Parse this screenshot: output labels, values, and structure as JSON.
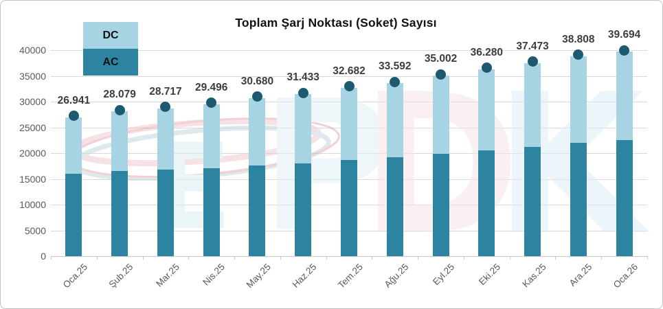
{
  "title": "Toplam Şarj Noktası (Soket) Sayısı",
  "legend": {
    "dc_label": "DC",
    "ac_label": "AC"
  },
  "watermark": {
    "name": "EPDK"
  },
  "colors": {
    "dc": "#A6D4E3",
    "ac": "#2C84A0",
    "marker": "#1D5A70",
    "grid": "#D9D9D9",
    "axis_text": "#595959",
    "data_label_text": "#3D3D3D",
    "title_text": "#111111",
    "frame_border": "#C2C2C2"
  },
  "chart_data": {
    "type": "bar",
    "stacked": true,
    "title": "Toplam Şarj Noktası (Soket) Sayısı",
    "categories": [
      "Oca.25",
      "Şub.25",
      "Mar.25",
      "Nis.25",
      "May.25",
      "Haz.25",
      "Tem.25",
      "Ağu.25",
      "Eyl.25",
      "Eki.25",
      "Kas.25",
      "Ara.25",
      "Oca.26"
    ],
    "series": [
      {
        "name": "AC",
        "color": "#2C84A0",
        "estimated": true,
        "values": [
          16000,
          16500,
          16800,
          17100,
          17600,
          18000,
          18700,
          19200,
          19900,
          20500,
          21250,
          22000,
          22500
        ]
      },
      {
        "name": "DC",
        "color": "#A6D4E3",
        "estimated": true,
        "values": [
          10941,
          11579,
          11917,
          12396,
          13080,
          13433,
          13982,
          14392,
          15102,
          15780,
          16223,
          16808,
          17194
        ]
      }
    ],
    "totals": [
      26941,
      28079,
      28717,
      29496,
      30680,
      31433,
      32682,
      33592,
      35002,
      36280,
      37473,
      38808,
      39694
    ],
    "total_labels": [
      "26.941",
      "28.079",
      "28.717",
      "29.496",
      "30.680",
      "31.433",
      "32.682",
      "33.592",
      "35.002",
      "36.280",
      "37.473",
      "38.808",
      "39.694"
    ],
    "ylim": [
      0,
      40000
    ],
    "ytick_step": 5000,
    "ytick_labels": [
      "0",
      "5000",
      "10000",
      "15000",
      "20000",
      "25000",
      "30000",
      "35000",
      "40000"
    ],
    "grid": true,
    "legend_position": "top-left",
    "marker": "circle-at-bar-top"
  }
}
